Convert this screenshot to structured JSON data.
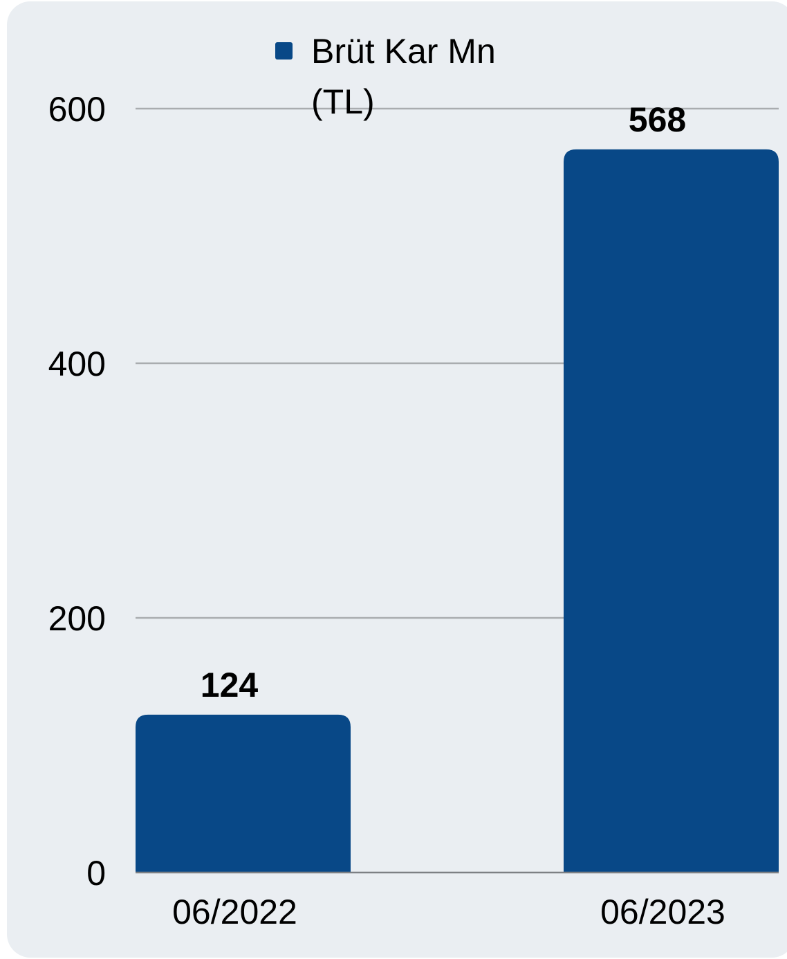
{
  "chart_data": {
    "type": "bar",
    "categories": [
      "06/2022",
      "06/2023"
    ],
    "series": [
      {
        "name": "Brüt Kar Mn (TL)",
        "name_lines": [
          "Brüt Kar Mn",
          "(TL)"
        ],
        "values": [
          124,
          568
        ],
        "value_labels": [
          "124",
          "568"
        ],
        "color": "#084887"
      }
    ],
    "ylim": [
      0,
      600
    ],
    "yticks": [
      0,
      200,
      400,
      600
    ],
    "ytick_labels": [
      "0",
      "200",
      "400",
      "600"
    ],
    "xlabel": "",
    "ylabel": "",
    "title": "",
    "grid": true,
    "legend": "top-center",
    "background_color": "#eaeef2",
    "grid_color": "#a9acaf"
  }
}
